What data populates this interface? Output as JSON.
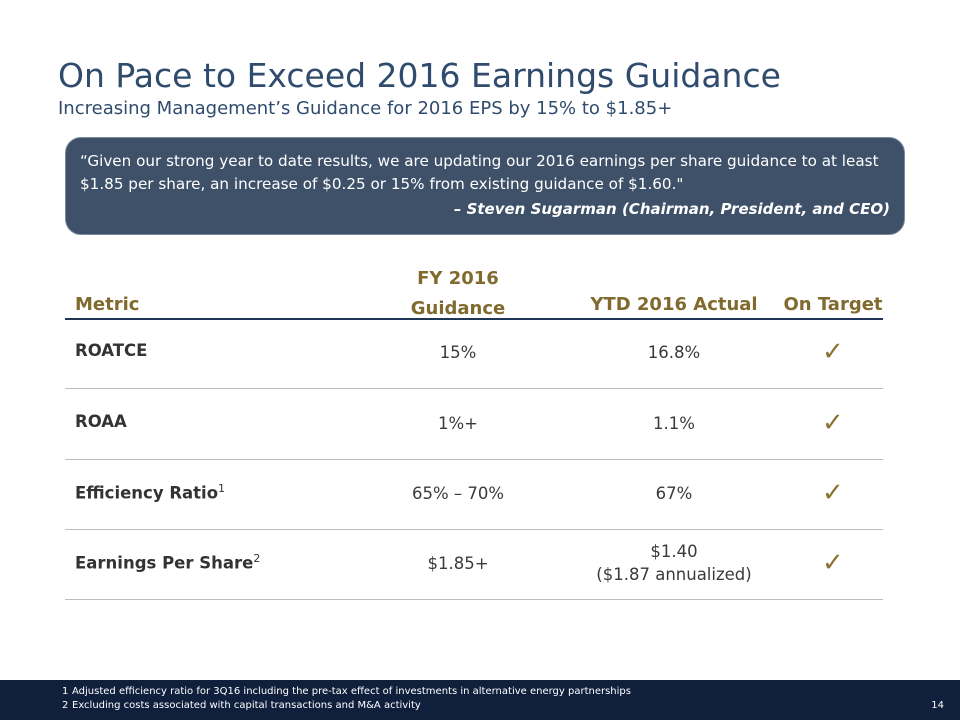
{
  "header": {
    "title": "On Pace to Exceed 2016 Earnings Guidance",
    "subtitle": "Increasing Management’s Guidance for 2016 EPS by 15% to $1.85+"
  },
  "quote": {
    "text": "“Given our strong year to date results, we are updating our 2016 earnings per share guidance to at least $1.85 per share, an increase of $0.25 or 15% from existing guidance of $1.60.\"",
    "attribution": "– Steven Sugarman (Chairman, President, and CEO)"
  },
  "table": {
    "headers": {
      "metric": "Metric",
      "guidance": [
        "FY 2016",
        "Guidance"
      ],
      "actual": "YTD 2016 Actual",
      "on_target": "On Target"
    },
    "rows": [
      {
        "metric": "ROATCE",
        "guidance": "15%",
        "actual": [
          "16.8%"
        ]
      },
      {
        "metric": "ROAA",
        "guidance": "1%+",
        "actual": [
          "1.1%"
        ]
      },
      {
        "metric": "Efficiency Ratio",
        "note": "1",
        "guidance": "65% – 70%",
        "actual": [
          "67%"
        ]
      },
      {
        "metric": "Earnings Per Share",
        "note": "2",
        "guidance": "$1.85+",
        "actual": [
          "$1.40",
          "($1.87 annualized)"
        ]
      }
    ]
  },
  "footnotes": [
    {
      "marker": "1",
      "text": "Adjusted efficiency ratio for 3Q16 including the pre-tax effect of investments in alternative energy partnerships"
    },
    {
      "marker": "2",
      "text": "Excluding costs associated with capital transactions and M&A activity"
    }
  ],
  "page_number": "14"
}
